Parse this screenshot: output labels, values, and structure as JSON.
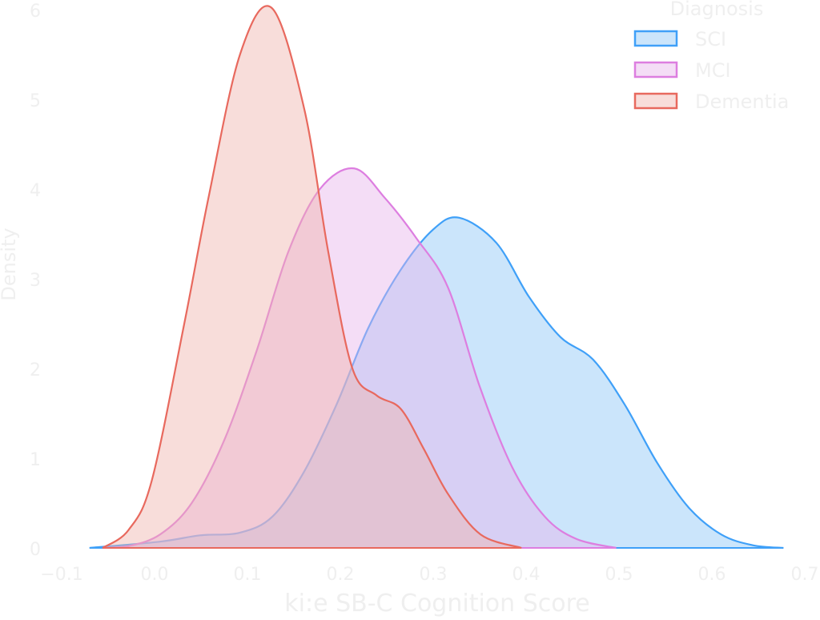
{
  "chart_data": {
    "type": "area",
    "title": "",
    "xlabel": "ki:e SB-C Cognition Score",
    "ylabel": "Density",
    "xlim": [
      -0.1,
      0.7
    ],
    "ylim": [
      0,
      6
    ],
    "x_ticks": [
      "−0.1",
      "0.0",
      "0.1",
      "0.2",
      "0.3",
      "0.4",
      "0.5",
      "0.6",
      "0.7"
    ],
    "y_ticks": [
      "0",
      "1",
      "2",
      "3",
      "4",
      "5",
      "6"
    ],
    "grid": false,
    "legend": {
      "title": "Diagnosis",
      "placement": "top-right"
    },
    "series": [
      {
        "name": "SCI",
        "color": "#3fa0f8",
        "fill": "#8cc6f7",
        "x": [
          -0.07,
          0.006,
          0.049,
          0.092,
          0.127,
          0.161,
          0.196,
          0.23,
          0.265,
          0.3,
          0.328,
          0.368,
          0.403,
          0.437,
          0.472,
          0.506,
          0.541,
          0.575,
          0.61,
          0.644,
          0.677
        ],
        "y": [
          0,
          0.07,
          0.14,
          0.17,
          0.35,
          0.85,
          1.6,
          2.45,
          3.1,
          3.55,
          3.68,
          3.4,
          2.8,
          2.35,
          2.1,
          1.6,
          0.95,
          0.45,
          0.15,
          0.03,
          0
        ]
      },
      {
        "name": "MCI",
        "color": "#dd7ee0",
        "fill": "#e7b4ec",
        "x": [
          -0.056,
          -0.028,
          0.006,
          0.04,
          0.075,
          0.11,
          0.144,
          0.178,
          0.215,
          0.248,
          0.282,
          0.316,
          0.35,
          0.385,
          0.42,
          0.454,
          0.497
        ],
        "y": [
          0,
          0.02,
          0.15,
          0.5,
          1.2,
          2.2,
          3.3,
          4.0,
          4.23,
          3.9,
          3.45,
          2.9,
          1.8,
          0.9,
          0.35,
          0.1,
          0
        ]
      },
      {
        "name": "Dementia",
        "color": "#e8695e",
        "fill": "#f0b4ae",
        "x": [
          -0.056,
          -0.028,
          -0.003,
          0.032,
          0.058,
          0.092,
          0.126,
          0.161,
          0.187,
          0.213,
          0.239,
          0.265,
          0.29,
          0.316,
          0.351,
          0.395
        ],
        "y": [
          0,
          0.2,
          0.75,
          2.5,
          3.9,
          5.5,
          6.02,
          4.9,
          3.3,
          2.0,
          1.7,
          1.55,
          1.1,
          0.6,
          0.15,
          0
        ]
      }
    ]
  }
}
